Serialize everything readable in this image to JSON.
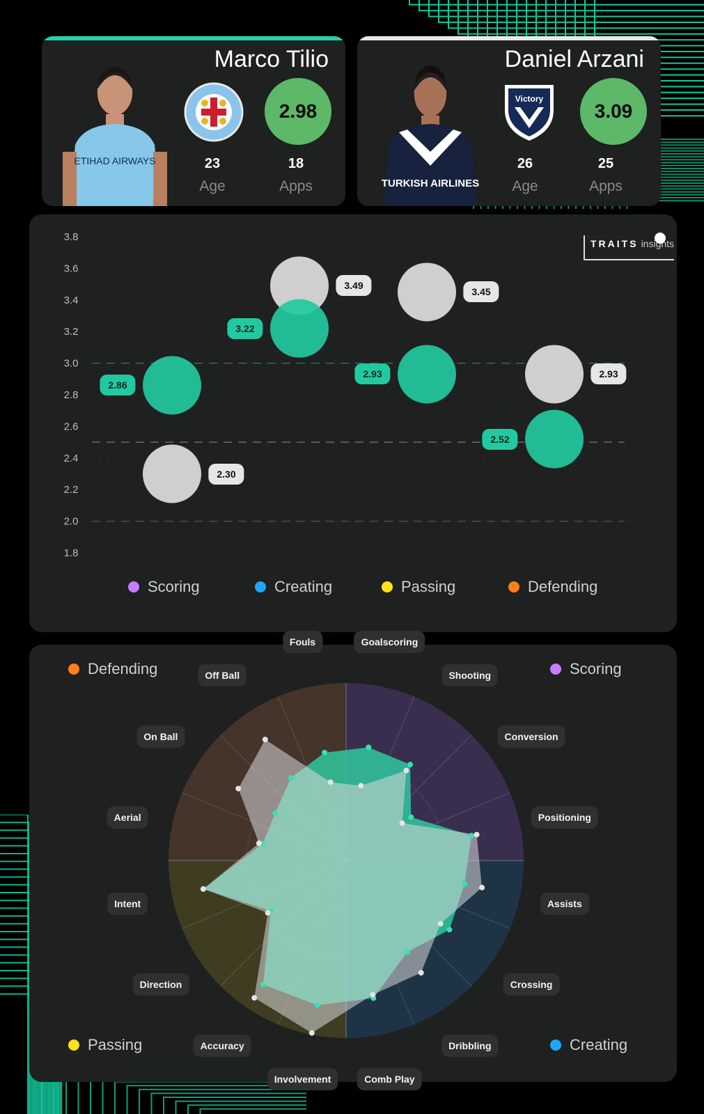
{
  "players": [
    {
      "name": "Marco Tilio",
      "score": "2.98",
      "age": "23",
      "age_label": "Age",
      "apps": "18",
      "apps_label": "Apps",
      "club_crest_text": "MELBOURNE CITY FOOTBALL CLUB",
      "shirt_sponsor": "ETIHAD AIRWAYS",
      "accent": "#22d3a5"
    },
    {
      "name": "Daniel Arzani",
      "score": "3.09",
      "age": "26",
      "age_label": "Age",
      "apps": "25",
      "apps_label": "Apps",
      "club_crest_text": "MELBOURNE Victory",
      "shirt_sponsor": "TURKISH AIRLINES",
      "accent": "#e8e8e8"
    }
  ],
  "brand": {
    "logo_main": "TRAITS",
    "logo_sub": "insights"
  },
  "colors": {
    "player1": "#22c9a0",
    "player2": "#cfcfcf",
    "scoring": "#c77dff",
    "creating": "#1ea7ff",
    "passing": "#ffe11a",
    "defending": "#ff7f1a"
  },
  "chart_data": [
    {
      "type": "scatter",
      "title": "",
      "xlabel": "",
      "ylabel": "",
      "ylim": [
        1.8,
        3.8
      ],
      "yticks": [
        "3.8",
        "3.6",
        "3.4",
        "3.2",
        "3.0",
        "2.8",
        "2.6",
        "2.4",
        "2.2",
        "2.0",
        "1.8"
      ],
      "categories": [
        "Scoring",
        "Creating",
        "Passing",
        "Defending"
      ],
      "series": [
        {
          "color": "#22c9a0",
          "values": [
            2.86,
            3.22,
            2.93,
            2.52
          ],
          "labels": [
            "2.86",
            "3.22",
            "2.93",
            "2.52"
          ]
        },
        {
          "color": "#cfcfcf",
          "values": [
            2.3,
            3.49,
            3.45,
            2.93
          ],
          "labels": [
            "2.30",
            "3.49",
            "3.45",
            "2.93"
          ]
        }
      ],
      "reference_lines": [
        {
          "value": 3.0,
          "color": "#2f6f55"
        },
        {
          "value": 2.5,
          "color": "#6a6a6a"
        },
        {
          "value": 2.0,
          "color": "#7a3a3a"
        }
      ],
      "grid": true,
      "legend": [
        {
          "label": "Scoring",
          "color": "#c77dff"
        },
        {
          "label": "Creating",
          "color": "#1ea7ff"
        },
        {
          "label": "Passing",
          "color": "#ffe11a"
        },
        {
          "label": "Defending",
          "color": "#ff7f1a"
        }
      ]
    },
    {
      "type": "radar",
      "axes": [
        "Goalscoring",
        "Shooting",
        "Conversion",
        "Positioning",
        "Assists",
        "Crossing",
        "Dribbling",
        "Comb Play",
        "Involvement",
        "Accuracy",
        "Direction",
        "Intent",
        "Aerial",
        "On Ball",
        "Off Ball",
        "Fouls"
      ],
      "series": [
        {
          "color": "#22c9a0",
          "values": [
            0.65,
            0.65,
            0.44,
            0.72,
            0.68,
            0.7,
            0.62,
            0.79,
            0.83,
            0.84,
            0.51,
            0.82,
            0.48,
            0.48,
            0.56,
            0.62
          ]
        },
        {
          "color": "#cfcfcf",
          "values": [
            0.43,
            0.61,
            0.38,
            0.75,
            0.78,
            0.64,
            0.76,
            0.77,
            0.99,
            0.93,
            0.53,
            0.82,
            0.5,
            0.73,
            0.82,
            0.45
          ]
        }
      ],
      "quadrants": [
        {
          "label": "Scoring",
          "color": "#c77dff",
          "position": "top-right"
        },
        {
          "label": "Creating",
          "color": "#1ea7ff",
          "position": "bottom-right"
        },
        {
          "label": "Passing",
          "color": "#ffe11a",
          "position": "bottom-left"
        },
        {
          "label": "Defending",
          "color": "#ff7f1a",
          "position": "top-left"
        }
      ]
    }
  ]
}
